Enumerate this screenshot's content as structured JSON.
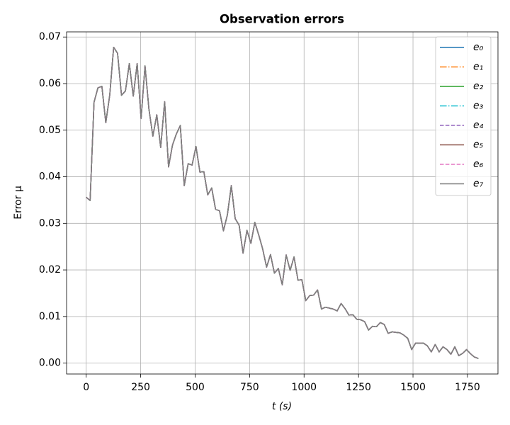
{
  "chart_data": {
    "type": "line",
    "title": "Observation errors",
    "x_label": "t (s)",
    "y_label": "Error μ",
    "x": [
      0,
      18,
      36,
      54,
      72,
      90,
      108,
      126,
      144,
      162,
      180,
      198,
      216,
      234,
      252,
      270,
      288,
      306,
      324,
      342,
      360,
      378,
      396,
      414,
      432,
      450,
      468,
      486,
      504,
      522,
      540,
      558,
      576,
      594,
      612,
      630,
      648,
      666,
      684,
      702,
      720,
      738,
      756,
      774,
      792,
      810,
      828,
      846,
      864,
      882,
      900,
      918,
      936,
      954,
      972,
      990,
      1008,
      1026,
      1044,
      1062,
      1080,
      1098,
      1116,
      1134,
      1152,
      1170,
      1188,
      1206,
      1224,
      1242,
      1260,
      1278,
      1296,
      1314,
      1332,
      1350,
      1368,
      1386,
      1404,
      1422,
      1440,
      1458,
      1476,
      1494,
      1512,
      1530,
      1548,
      1566,
      1584,
      1602,
      1620,
      1638,
      1656,
      1674,
      1692,
      1710,
      1728,
      1746,
      1764,
      1782,
      1800
    ],
    "series": [
      {
        "name": "e₀",
        "color": "#1f77b4",
        "linestyle": "solid",
        "values": [
          0.0356,
          0.0349,
          0.056,
          0.0591,
          0.0594,
          0.0516,
          0.0575,
          0.0678,
          0.0665,
          0.0575,
          0.0584,
          0.0643,
          0.0573,
          0.0643,
          0.0525,
          0.0638,
          0.0545,
          0.0487,
          0.0533,
          0.0463,
          0.0561,
          0.0421,
          0.0468,
          0.0492,
          0.051,
          0.0381,
          0.0428,
          0.0425,
          0.0465,
          0.041,
          0.0411,
          0.0361,
          0.0376,
          0.033,
          0.0327,
          0.0284,
          0.0318,
          0.0381,
          0.031,
          0.0296,
          0.0236,
          0.0285,
          0.0257,
          0.0302,
          0.0275,
          0.0245,
          0.0206,
          0.0233,
          0.0193,
          0.0203,
          0.0168,
          0.0232,
          0.0199,
          0.0228,
          0.0178,
          0.0179,
          0.0134,
          0.0145,
          0.0146,
          0.0157,
          0.0116,
          0.012,
          0.0118,
          0.0116,
          0.0112,
          0.0128,
          0.0117,
          0.0103,
          0.0104,
          0.0094,
          0.0093,
          0.0089,
          0.0071,
          0.0079,
          0.0078,
          0.0087,
          0.0083,
          0.0064,
          0.0067,
          0.0066,
          0.0065,
          0.006,
          0.0053,
          0.0029,
          0.0043,
          0.0043,
          0.0043,
          0.0037,
          0.0024,
          0.004,
          0.0024,
          0.0035,
          0.0029,
          0.0019,
          0.0035,
          0.0016,
          0.0021,
          0.0029,
          0.002,
          0.0013,
          0.001
        ]
      },
      {
        "name": "e₁",
        "color": "#ff7f0e",
        "linestyle": "dashdot",
        "values": [
          0.0356,
          0.0349,
          0.056,
          0.0591,
          0.0594,
          0.0516,
          0.0575,
          0.0678,
          0.0665,
          0.0575,
          0.0584,
          0.0643,
          0.0573,
          0.0643,
          0.0525,
          0.0638,
          0.0545,
          0.0487,
          0.0533,
          0.0463,
          0.0561,
          0.0421,
          0.0468,
          0.0492,
          0.051,
          0.0381,
          0.0428,
          0.0425,
          0.0465,
          0.041,
          0.0411,
          0.0361,
          0.0376,
          0.033,
          0.0327,
          0.0284,
          0.0318,
          0.0381,
          0.031,
          0.0296,
          0.0236,
          0.0285,
          0.0257,
          0.0302,
          0.0275,
          0.0245,
          0.0206,
          0.0233,
          0.0193,
          0.0203,
          0.0168,
          0.0232,
          0.0199,
          0.0228,
          0.0178,
          0.0179,
          0.0134,
          0.0145,
          0.0146,
          0.0157,
          0.0116,
          0.012,
          0.0118,
          0.0116,
          0.0112,
          0.0128,
          0.0117,
          0.0103,
          0.0104,
          0.0094,
          0.0093,
          0.0089,
          0.0071,
          0.0079,
          0.0078,
          0.0087,
          0.0083,
          0.0064,
          0.0067,
          0.0066,
          0.0065,
          0.006,
          0.0053,
          0.0029,
          0.0043,
          0.0043,
          0.0043,
          0.0037,
          0.0024,
          0.004,
          0.0024,
          0.0035,
          0.0029,
          0.0019,
          0.0035,
          0.0016,
          0.0021,
          0.0029,
          0.002,
          0.0013,
          0.001
        ]
      },
      {
        "name": "e₂",
        "color": "#2ca02c",
        "linestyle": "solid",
        "values": [
          0.0356,
          0.0349,
          0.056,
          0.0591,
          0.0594,
          0.0516,
          0.0575,
          0.0678,
          0.0665,
          0.0575,
          0.0584,
          0.0643,
          0.0573,
          0.0643,
          0.0525,
          0.0638,
          0.0545,
          0.0487,
          0.0533,
          0.0463,
          0.0561,
          0.0421,
          0.0468,
          0.0492,
          0.051,
          0.0381,
          0.0428,
          0.0425,
          0.0465,
          0.041,
          0.0411,
          0.0361,
          0.0376,
          0.033,
          0.0327,
          0.0284,
          0.0318,
          0.0381,
          0.031,
          0.0296,
          0.0236,
          0.0285,
          0.0257,
          0.0302,
          0.0275,
          0.0245,
          0.0206,
          0.0233,
          0.0193,
          0.0203,
          0.0168,
          0.0232,
          0.0199,
          0.0228,
          0.0178,
          0.0179,
          0.0134,
          0.0145,
          0.0146,
          0.0157,
          0.0116,
          0.012,
          0.0118,
          0.0116,
          0.0112,
          0.0128,
          0.0117,
          0.0103,
          0.0104,
          0.0094,
          0.0093,
          0.0089,
          0.0071,
          0.0079,
          0.0078,
          0.0087,
          0.0083,
          0.0064,
          0.0067,
          0.0066,
          0.0065,
          0.006,
          0.0053,
          0.0029,
          0.0043,
          0.0043,
          0.0043,
          0.0037,
          0.0024,
          0.004,
          0.0024,
          0.0035,
          0.0029,
          0.0019,
          0.0035,
          0.0016,
          0.0021,
          0.0029,
          0.002,
          0.0013,
          0.001
        ]
      },
      {
        "name": "e₃",
        "color": "#17becf",
        "linestyle": "dashdot",
        "values": [
          0.0356,
          0.0349,
          0.056,
          0.0591,
          0.0594,
          0.0516,
          0.0575,
          0.0678,
          0.0665,
          0.0575,
          0.0584,
          0.0643,
          0.0573,
          0.0643,
          0.0525,
          0.0638,
          0.0545,
          0.0487,
          0.0533,
          0.0463,
          0.0561,
          0.0421,
          0.0468,
          0.0492,
          0.051,
          0.0381,
          0.0428,
          0.0425,
          0.0465,
          0.041,
          0.0411,
          0.0361,
          0.0376,
          0.033,
          0.0327,
          0.0284,
          0.0318,
          0.0381,
          0.031,
          0.0296,
          0.0236,
          0.0285,
          0.0257,
          0.0302,
          0.0275,
          0.0245,
          0.0206,
          0.0233,
          0.0193,
          0.0203,
          0.0168,
          0.0232,
          0.0199,
          0.0228,
          0.0178,
          0.0179,
          0.0134,
          0.0145,
          0.0146,
          0.0157,
          0.0116,
          0.012,
          0.0118,
          0.0116,
          0.0112,
          0.0128,
          0.0117,
          0.0103,
          0.0104,
          0.0094,
          0.0093,
          0.0089,
          0.0071,
          0.0079,
          0.0078,
          0.0087,
          0.0083,
          0.0064,
          0.0067,
          0.0066,
          0.0065,
          0.006,
          0.0053,
          0.0029,
          0.0043,
          0.0043,
          0.0043,
          0.0037,
          0.0024,
          0.004,
          0.0024,
          0.0035,
          0.0029,
          0.0019,
          0.0035,
          0.0016,
          0.0021,
          0.0029,
          0.002,
          0.0013,
          0.001
        ]
      },
      {
        "name": "e₄",
        "color": "#9467bd",
        "linestyle": "dashed",
        "values": [
          0.0356,
          0.0349,
          0.056,
          0.0591,
          0.0594,
          0.0516,
          0.0575,
          0.0678,
          0.0665,
          0.0575,
          0.0584,
          0.0643,
          0.0573,
          0.0643,
          0.0525,
          0.0638,
          0.0545,
          0.0487,
          0.0533,
          0.0463,
          0.0561,
          0.0421,
          0.0468,
          0.0492,
          0.051,
          0.0381,
          0.0428,
          0.0425,
          0.0465,
          0.041,
          0.0411,
          0.0361,
          0.0376,
          0.033,
          0.0327,
          0.0284,
          0.0318,
          0.0381,
          0.031,
          0.0296,
          0.0236,
          0.0285,
          0.0257,
          0.0302,
          0.0275,
          0.0245,
          0.0206,
          0.0233,
          0.0193,
          0.0203,
          0.0168,
          0.0232,
          0.0199,
          0.0228,
          0.0178,
          0.0179,
          0.0134,
          0.0145,
          0.0146,
          0.0157,
          0.0116,
          0.012,
          0.0118,
          0.0116,
          0.0112,
          0.0128,
          0.0117,
          0.0103,
          0.0104,
          0.0094,
          0.0093,
          0.0089,
          0.0071,
          0.0079,
          0.0078,
          0.0087,
          0.0083,
          0.0064,
          0.0067,
          0.0066,
          0.0065,
          0.006,
          0.0053,
          0.0029,
          0.0043,
          0.0043,
          0.0043,
          0.0037,
          0.0024,
          0.004,
          0.0024,
          0.0035,
          0.0029,
          0.0019,
          0.0035,
          0.0016,
          0.0021,
          0.0029,
          0.002,
          0.0013,
          0.001
        ]
      },
      {
        "name": "e₅",
        "color": "#8c564b",
        "linestyle": "solid",
        "values": [
          0.0356,
          0.0349,
          0.056,
          0.0591,
          0.0594,
          0.0516,
          0.0575,
          0.0678,
          0.0665,
          0.0575,
          0.0584,
          0.0643,
          0.0573,
          0.0643,
          0.0525,
          0.0638,
          0.0545,
          0.0487,
          0.0533,
          0.0463,
          0.0561,
          0.0421,
          0.0468,
          0.0492,
          0.051,
          0.0381,
          0.0428,
          0.0425,
          0.0465,
          0.041,
          0.0411,
          0.0361,
          0.0376,
          0.033,
          0.0327,
          0.0284,
          0.0318,
          0.0381,
          0.031,
          0.0296,
          0.0236,
          0.0285,
          0.0257,
          0.0302,
          0.0275,
          0.0245,
          0.0206,
          0.0233,
          0.0193,
          0.0203,
          0.0168,
          0.0232,
          0.0199,
          0.0228,
          0.0178,
          0.0179,
          0.0134,
          0.0145,
          0.0146,
          0.0157,
          0.0116,
          0.012,
          0.0118,
          0.0116,
          0.0112,
          0.0128,
          0.0117,
          0.0103,
          0.0104,
          0.0094,
          0.0093,
          0.0089,
          0.0071,
          0.0079,
          0.0078,
          0.0087,
          0.0083,
          0.0064,
          0.0067,
          0.0066,
          0.0065,
          0.006,
          0.0053,
          0.0029,
          0.0043,
          0.0043,
          0.0043,
          0.0037,
          0.0024,
          0.004,
          0.0024,
          0.0035,
          0.0029,
          0.0019,
          0.0035,
          0.0016,
          0.0021,
          0.0029,
          0.002,
          0.0013,
          0.001
        ]
      },
      {
        "name": "e₆",
        "color": "#e377c2",
        "linestyle": "dashed",
        "values": [
          0.0356,
          0.0349,
          0.056,
          0.0591,
          0.0594,
          0.0516,
          0.0575,
          0.0678,
          0.0665,
          0.0575,
          0.0584,
          0.0643,
          0.0573,
          0.0643,
          0.0525,
          0.0638,
          0.0545,
          0.0487,
          0.0533,
          0.0463,
          0.0561,
          0.0421,
          0.0468,
          0.0492,
          0.051,
          0.0381,
          0.0428,
          0.0425,
          0.0465,
          0.041,
          0.0411,
          0.0361,
          0.0376,
          0.033,
          0.0327,
          0.0284,
          0.0318,
          0.0381,
          0.031,
          0.0296,
          0.0236,
          0.0285,
          0.0257,
          0.0302,
          0.0275,
          0.0245,
          0.0206,
          0.0233,
          0.0193,
          0.0203,
          0.0168,
          0.0232,
          0.0199,
          0.0228,
          0.0178,
          0.0179,
          0.0134,
          0.0145,
          0.0146,
          0.0157,
          0.0116,
          0.012,
          0.0118,
          0.0116,
          0.0112,
          0.0128,
          0.0117,
          0.0103,
          0.0104,
          0.0094,
          0.0093,
          0.0089,
          0.0071,
          0.0079,
          0.0078,
          0.0087,
          0.0083,
          0.0064,
          0.0067,
          0.0066,
          0.0065,
          0.006,
          0.0053,
          0.0029,
          0.0043,
          0.0043,
          0.0043,
          0.0037,
          0.0024,
          0.004,
          0.0024,
          0.0035,
          0.0029,
          0.0019,
          0.0035,
          0.0016,
          0.0021,
          0.0029,
          0.002,
          0.0013,
          0.001
        ]
      },
      {
        "name": "e₇",
        "color": "#7f7f7f",
        "linestyle": "solid",
        "values": [
          0.0356,
          0.0349,
          0.056,
          0.0591,
          0.0594,
          0.0516,
          0.0575,
          0.0678,
          0.0665,
          0.0575,
          0.0584,
          0.0643,
          0.0573,
          0.0643,
          0.0525,
          0.0638,
          0.0545,
          0.0487,
          0.0533,
          0.0463,
          0.0561,
          0.0421,
          0.0468,
          0.0492,
          0.051,
          0.0381,
          0.0428,
          0.0425,
          0.0465,
          0.041,
          0.0411,
          0.0361,
          0.0376,
          0.033,
          0.0327,
          0.0284,
          0.0318,
          0.0381,
          0.031,
          0.0296,
          0.0236,
          0.0285,
          0.0257,
          0.0302,
          0.0275,
          0.0245,
          0.0206,
          0.0233,
          0.0193,
          0.0203,
          0.0168,
          0.0232,
          0.0199,
          0.0228,
          0.0178,
          0.0179,
          0.0134,
          0.0145,
          0.0146,
          0.0157,
          0.0116,
          0.012,
          0.0118,
          0.0116,
          0.0112,
          0.0128,
          0.0117,
          0.0103,
          0.0104,
          0.0094,
          0.0093,
          0.0089,
          0.0071,
          0.0079,
          0.0078,
          0.0087,
          0.0083,
          0.0064,
          0.0067,
          0.0066,
          0.0065,
          0.006,
          0.0053,
          0.0029,
          0.0043,
          0.0043,
          0.0043,
          0.0037,
          0.0024,
          0.004,
          0.0024,
          0.0035,
          0.0029,
          0.0019,
          0.0035,
          0.0016,
          0.0021,
          0.0029,
          0.002,
          0.0013,
          0.001
        ]
      }
    ],
    "xlim": [
      -90,
      1890
    ],
    "xticks": [
      0,
      250,
      500,
      750,
      1000,
      1250,
      1500,
      1750
    ],
    "ylim": [
      -0.00234,
      0.0711
    ],
    "yticks": [
      {
        "value": 0,
        "label": "0.00"
      },
      {
        "value": 0.01,
        "label": "0.01"
      },
      {
        "value": 0.02,
        "label": "0.02"
      },
      {
        "value": 0.03,
        "label": "0.03"
      },
      {
        "value": 0.04,
        "label": "0.04"
      },
      {
        "value": 0.05,
        "label": "0.05"
      },
      {
        "value": 0.06,
        "label": "0.06"
      },
      {
        "value": 0.07,
        "label": "0.07"
      }
    ],
    "grid": true,
    "legend": "upper right"
  }
}
